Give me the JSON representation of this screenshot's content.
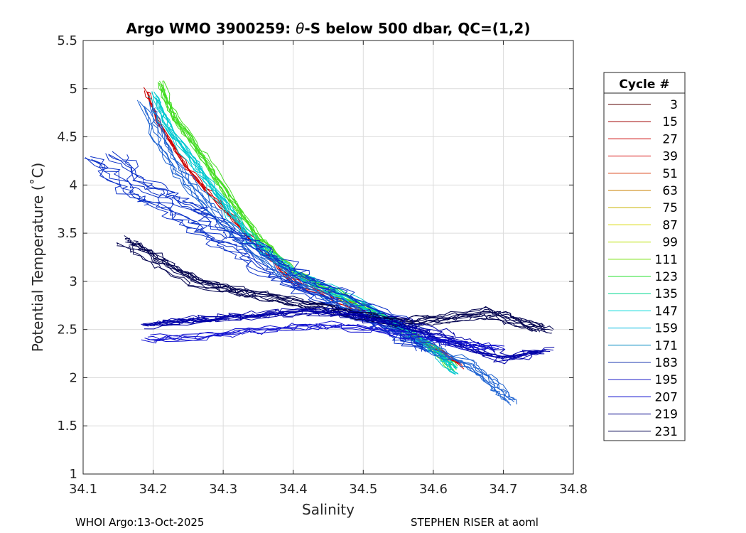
{
  "chart_data": {
    "type": "line",
    "title": "Argo WMO 3900259: θ-S below 500 dbar,  QC=(1,2)",
    "title_parts": {
      "prefix": "Argo WMO 3900259: ",
      "theta": "θ",
      "suffix": "-S below 500 dbar,  QC=(1,2)"
    },
    "xlabel": "Salinity",
    "ylabel": "Potential Temperature (˚C)",
    "xlim": [
      34.1,
      34.8
    ],
    "ylim": [
      1,
      5.5
    ],
    "xticks": [
      "34.1",
      "34.2",
      "34.3",
      "34.4",
      "34.5",
      "34.6",
      "34.7",
      "34.8"
    ],
    "yticks": [
      "1",
      "1.5",
      "2",
      "2.5",
      "3",
      "3.5",
      "4",
      "4.5",
      "5",
      "5.5"
    ],
    "grid": true,
    "legend": {
      "title": "Cycle #",
      "placement": "right-outside",
      "entries": [
        "3",
        "15",
        "27",
        "39",
        "51",
        "63",
        "75",
        "87",
        "99",
        "111",
        "123",
        "135",
        "147",
        "159",
        "171",
        "183",
        "195",
        "207",
        "219",
        "231"
      ],
      "colors": [
        "#5a0000",
        "#a00000",
        "#cc0000",
        "#d81818",
        "#d83a0a",
        "#c88000",
        "#c8b400",
        "#d8d800",
        "#b8e000",
        "#70e000",
        "#28e030",
        "#00d890",
        "#00d8d8",
        "#00b8e0",
        "#0088c0",
        "#1c38b0",
        "#2020c8",
        "#0000cc",
        "#000088",
        "#000050"
      ]
    },
    "series_groups": [
      {
        "name": "upper branch (early cycles, red)",
        "color": "#cc0000",
        "count": 6,
        "jitter": 0.004,
        "path": [
          [
            34.19,
            4.96
          ],
          [
            34.21,
            4.6
          ],
          [
            34.25,
            4.15
          ],
          [
            34.3,
            3.75
          ],
          [
            34.35,
            3.35
          ],
          [
            34.4,
            3.0
          ],
          [
            34.46,
            2.8
          ],
          [
            34.53,
            2.6
          ],
          [
            34.6,
            2.3
          ],
          [
            34.64,
            2.12
          ]
        ]
      },
      {
        "name": "upper branch (mid cycles, green)",
        "color": "#44dd22",
        "count": 10,
        "jitter": 0.006,
        "path": [
          [
            34.21,
            5.05
          ],
          [
            34.23,
            4.7
          ],
          [
            34.27,
            4.3
          ],
          [
            34.31,
            3.85
          ],
          [
            34.35,
            3.45
          ],
          [
            34.4,
            3.1
          ],
          [
            34.46,
            2.88
          ],
          [
            34.53,
            2.62
          ],
          [
            34.6,
            2.3
          ],
          [
            34.63,
            2.1
          ]
        ]
      },
      {
        "name": "upper branch (cyan cycles)",
        "color": "#00c8d0",
        "count": 10,
        "jitter": 0.007,
        "path": [
          [
            34.2,
            4.92
          ],
          [
            34.22,
            4.6
          ],
          [
            34.26,
            4.2
          ],
          [
            34.3,
            3.8
          ],
          [
            34.34,
            3.42
          ],
          [
            34.4,
            3.08
          ],
          [
            34.47,
            2.85
          ],
          [
            34.54,
            2.58
          ],
          [
            34.6,
            2.28
          ],
          [
            34.63,
            2.07
          ]
        ]
      },
      {
        "name": "upper branch (blue cycles)",
        "color": "#1a60d0",
        "count": 8,
        "jitter": 0.01,
        "path": [
          [
            34.19,
            4.85
          ],
          [
            34.21,
            4.45
          ],
          [
            34.24,
            4.1
          ],
          [
            34.28,
            3.75
          ],
          [
            34.33,
            3.4
          ],
          [
            34.39,
            3.05
          ],
          [
            34.46,
            2.8
          ],
          [
            34.53,
            2.55
          ],
          [
            34.6,
            2.28
          ],
          [
            34.65,
            2.15
          ],
          [
            34.68,
            1.95
          ],
          [
            34.71,
            1.75
          ]
        ]
      },
      {
        "name": "scattered blue (fresh/warm region)",
        "color": "#0a30c8",
        "count": 10,
        "jitter": 0.025,
        "path": [
          [
            34.13,
            4.3
          ],
          [
            34.17,
            4.0
          ],
          [
            34.21,
            3.85
          ],
          [
            34.25,
            3.7
          ],
          [
            34.29,
            3.5
          ],
          [
            34.33,
            3.35
          ],
          [
            34.38,
            3.1
          ],
          [
            34.42,
            2.95
          ],
          [
            34.48,
            2.75
          ],
          [
            34.55,
            2.5
          ],
          [
            34.6,
            2.3
          ]
        ]
      },
      {
        "name": "lower branch (dark navy)",
        "color": "#00004e",
        "count": 10,
        "jitter": 0.012,
        "path": [
          [
            34.16,
            3.42
          ],
          [
            34.19,
            3.3
          ],
          [
            34.23,
            3.12
          ],
          [
            34.27,
            2.98
          ],
          [
            34.32,
            2.9
          ],
          [
            34.38,
            2.82
          ],
          [
            34.44,
            2.74
          ],
          [
            34.5,
            2.64
          ],
          [
            34.56,
            2.58
          ],
          [
            34.62,
            2.62
          ],
          [
            34.68,
            2.68
          ],
          [
            34.72,
            2.58
          ],
          [
            34.76,
            2.5
          ]
        ]
      },
      {
        "name": "lower branch (navy/blue)",
        "color": "#0000a8",
        "count": 10,
        "jitter": 0.02,
        "path": [
          [
            34.19,
            2.55
          ],
          [
            34.25,
            2.6
          ],
          [
            34.3,
            2.62
          ],
          [
            34.36,
            2.66
          ],
          [
            34.42,
            2.7
          ],
          [
            34.48,
            2.66
          ],
          [
            34.54,
            2.58
          ],
          [
            34.6,
            2.45
          ],
          [
            34.64,
            2.35
          ],
          [
            34.7,
            2.2
          ],
          [
            34.76,
            2.28
          ]
        ]
      },
      {
        "name": "lower flat (blue)",
        "color": "#1010d0",
        "count": 6,
        "jitter": 0.014,
        "path": [
          [
            34.2,
            2.4
          ],
          [
            34.27,
            2.42
          ],
          [
            34.34,
            2.48
          ],
          [
            34.4,
            2.52
          ],
          [
            34.46,
            2.54
          ],
          [
            34.53,
            2.5
          ],
          [
            34.59,
            2.42
          ],
          [
            34.65,
            2.35
          ],
          [
            34.7,
            2.3
          ]
        ]
      }
    ]
  },
  "footer": {
    "left": "WHOI Argo:13-Oct-2025",
    "right": "STEPHEN RISER at aoml"
  }
}
